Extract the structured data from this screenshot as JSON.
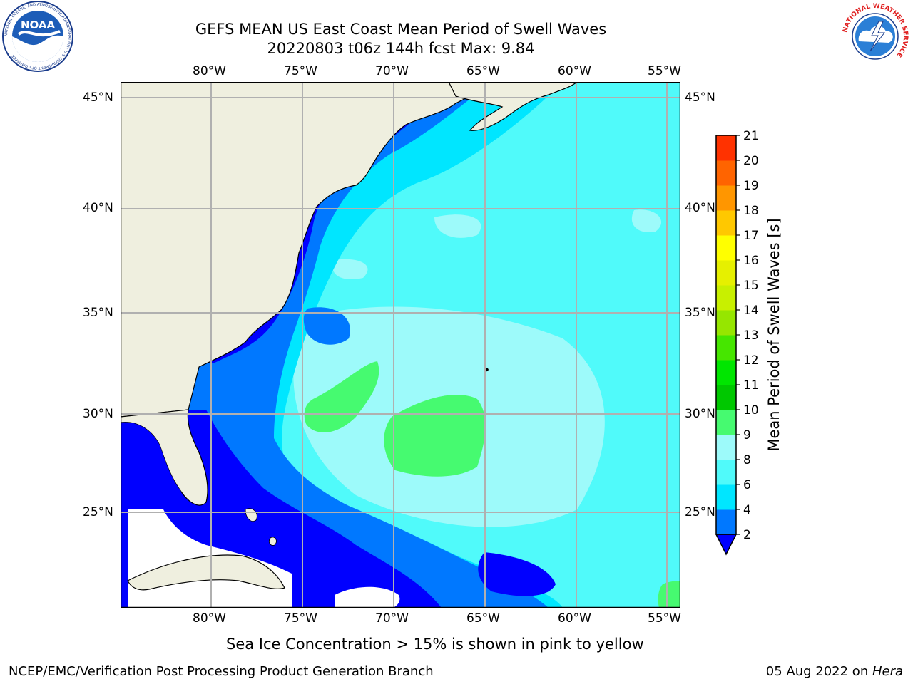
{
  "header": {
    "title_line1": "GEFS MEAN US East Coast Mean Period of Swell Waves",
    "title_line2": "20220803 t06z 144h fcst   Max: 9.84"
  },
  "logos": {
    "left": {
      "icon": "noaa-logo-icon",
      "text": "NOAA",
      "ring_text": "NATIONAL OCEANIC AND ATMOSPHERIC ADMINISTRATION · U.S. DEPARTMENT OF COMMERCE"
    },
    "right": {
      "icon": "nws-logo-icon",
      "ring_text": "NATIONAL WEATHER SERVICE"
    }
  },
  "map": {
    "lon_ticks": [
      "80°W",
      "75°W",
      "70°W",
      "65°W",
      "60°W",
      "55°W"
    ],
    "lat_ticks": [
      "45°N",
      "40°N",
      "35°N",
      "30°N",
      "25°N"
    ],
    "colors": {
      "land": "#efefdf",
      "c2": "#0000ff",
      "c4": "#0078ff",
      "c6": "#00e6ff",
      "c8": "#50fafa",
      "c9": "#9dfafa",
      "c10": "#46fa70",
      "grid": "#b0b0b0"
    }
  },
  "colorbar": {
    "label": "Mean Period of Swell Waves [s]",
    "ticks": [
      "2",
      "4",
      "6",
      "8",
      "9",
      "10",
      "11",
      "12",
      "13",
      "14",
      "15",
      "16",
      "17",
      "18",
      "19",
      "20",
      "21"
    ],
    "colors": [
      "#0078ff",
      "#00e6ff",
      "#50fafa",
      "#9dfafa",
      "#46fa70",
      "#00c800",
      "#00e600",
      "#46e600",
      "#96e600",
      "#c8f000",
      "#e6f000",
      "#ffff00",
      "#ffc800",
      "#ff9600",
      "#ff6400",
      "#ff3200",
      "#ff0000"
    ],
    "extend_color": "#0000ff"
  },
  "notes": {
    "sea_ice": "Sea Ice Concentration > 15% is shown in pink to yellow"
  },
  "footer": {
    "left": "NCEP/EMC/Verification Post Processing Product Generation Branch",
    "right_prefix": "05 Aug 2022 on ",
    "right_host": "Hera"
  }
}
